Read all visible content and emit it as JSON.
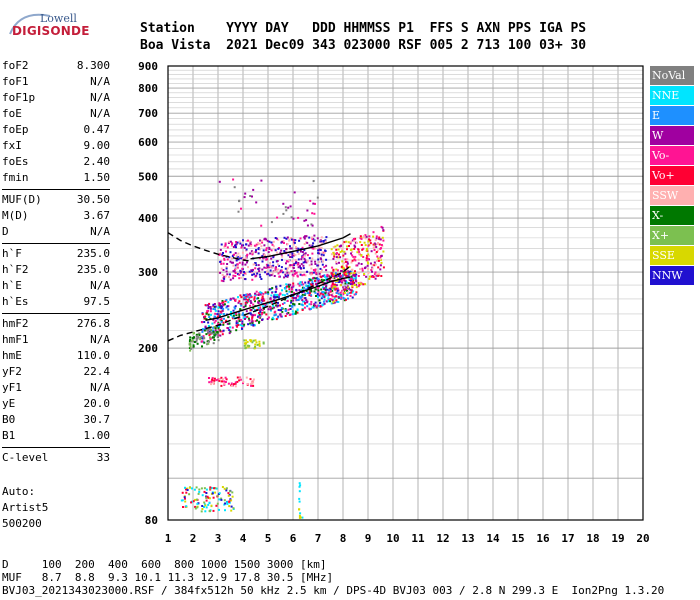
{
  "logo": {
    "line1": "Lowell",
    "line2": "DIGISONDE"
  },
  "header": {
    "line1": "Station    YYYY DAY   DDD HHMMSS P1  FFS S AXN PPS IGA PS",
    "line2": "Boa Vista  2021 Dec09 343 023000 RSF 005 2 713 100 03+ 30"
  },
  "params": [
    {
      "group": [
        {
          "name": "foF2",
          "value": "8.300"
        },
        {
          "name": "foF1",
          "value": "N/A"
        },
        {
          "name": "foF1p",
          "value": "N/A"
        },
        {
          "name": "foE",
          "value": "N/A"
        },
        {
          "name": "foEp",
          "value": "0.47"
        },
        {
          "name": "fxI",
          "value": "9.00"
        },
        {
          "name": "foEs",
          "value": "2.40"
        },
        {
          "name": "fmin",
          "value": "1.50"
        }
      ]
    },
    {
      "group": [
        {
          "name": "MUF(D)",
          "value": "30.50"
        },
        {
          "name": "M(D)",
          "value": "3.67"
        },
        {
          "name": "D",
          "value": "N/A"
        }
      ]
    },
    {
      "group": [
        {
          "name": "h`F",
          "value": "235.0"
        },
        {
          "name": "h`F2",
          "value": "235.0"
        },
        {
          "name": "h`E",
          "value": "N/A"
        },
        {
          "name": "h`Es",
          "value": "97.5"
        }
      ]
    },
    {
      "group": [
        {
          "name": "hmF2",
          "value": "276.8"
        },
        {
          "name": "hmF1",
          "value": "N/A"
        },
        {
          "name": "hmE",
          "value": "110.0"
        },
        {
          "name": "yF2",
          "value": "22.4"
        },
        {
          "name": "yF1",
          "value": "N/A"
        },
        {
          "name": "yE",
          "value": "20.0"
        },
        {
          "name": "B0",
          "value": "30.7"
        },
        {
          "name": "B1",
          "value": "1.00"
        }
      ]
    },
    {
      "group": [
        {
          "name": "C-level",
          "value": "33"
        }
      ]
    }
  ],
  "auto": {
    "line1": "Auto:",
    "line2": "Artist5",
    "line3": "500200"
  },
  "legend": [
    {
      "label": "NoVal",
      "color": "#808080"
    },
    {
      "label": "NNE",
      "color": "#00e5ff"
    },
    {
      "label": "E",
      "color": "#1e90ff"
    },
    {
      "label": "W",
      "color": "#a000a0"
    },
    {
      "label": "Vo-",
      "color": "#ff1493"
    },
    {
      "label": "Vo+",
      "color": "#ff0033"
    },
    {
      "label": "SSW",
      "color": "#ffb0b0"
    },
    {
      "label": "X-",
      "color": "#007800"
    },
    {
      "label": "X+",
      "color": "#7cc050"
    },
    {
      "label": "SSE",
      "color": "#d8d800"
    },
    {
      "label": "NNW",
      "color": "#2010d0"
    }
  ],
  "footer": {
    "line1": "D     100  200  400  600  800 1000 1500 3000 [km]",
    "line2": "MUF   8.7  8.8  9.3 10.1 11.3 12.9 17.8 30.5 [MHz]",
    "line3": "BVJ03_2021343023000.RSF / 384fx512h 50 kHz 2.5 km / DPS-4D BVJ03 003 / 2.8 N 299.3 E  Ion2Png 1.3.20"
  },
  "chart_data": {
    "type": "scatter",
    "title": "",
    "xlabel": "",
    "ylabel": "",
    "xlim": [
      1,
      20
    ],
    "ylim": [
      80,
      900
    ],
    "y_scale": "log",
    "x_ticks": [
      1,
      2,
      3,
      4,
      5,
      6,
      7,
      8,
      9,
      10,
      11,
      12,
      13,
      14,
      15,
      16,
      17,
      18,
      19,
      20
    ],
    "y_ticks": [
      80,
      200,
      300,
      400,
      500,
      600,
      700,
      800,
      900
    ],
    "grid": true,
    "curves": [
      {
        "x": [
          1.0,
          1.5,
          2.0,
          2.5,
          3.0,
          3.5,
          4.0,
          4.3
        ],
        "y": [
          370,
          355,
          345,
          337,
          330,
          325,
          320,
          318
        ],
        "style": "dashed"
      },
      {
        "x": [
          1.0,
          1.5,
          2.0,
          2.5,
          3.0,
          3.5,
          4.0,
          5.0,
          6.0,
          7.0,
          8.0,
          8.3
        ],
        "y": [
          208,
          214,
          218,
          222,
          226,
          232,
          238,
          250,
          265,
          282,
          300,
          310
        ],
        "style": "dashed"
      },
      {
        "x": [
          2.5,
          3.0,
          3.5,
          4.0,
          4.5,
          5.0,
          5.5,
          6.0,
          6.5,
          7.0,
          7.5,
          8.0,
          8.3
        ],
        "y": [
          232,
          235,
          240,
          245,
          250,
          255,
          260,
          266,
          272,
          278,
          285,
          290,
          292
        ],
        "style": "solid"
      },
      {
        "x": [
          4.3,
          5.0,
          6.0,
          7.0,
          8.0,
          8.3
        ],
        "y": [
          322,
          326,
          335,
          345,
          360,
          368
        ],
        "style": "solid"
      }
    ]
  }
}
